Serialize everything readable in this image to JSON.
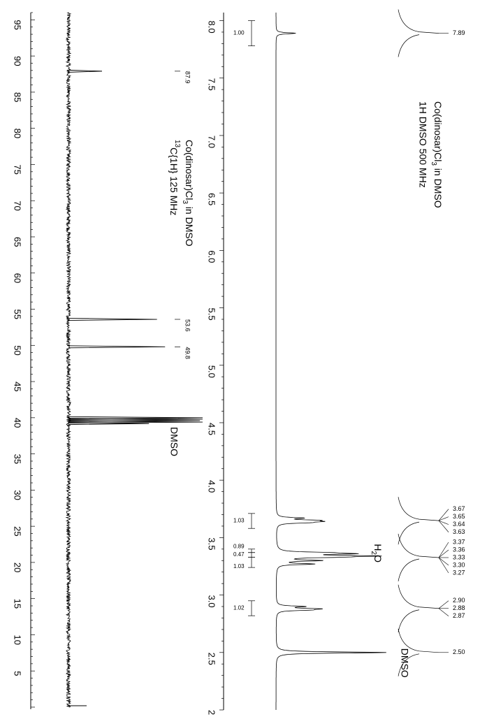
{
  "chart_data": [
    {
      "type": "line",
      "title": "Co(dinosar)Cl3 in DMSO",
      "subtitle": "13C{1H} 125 MHz",
      "title_parts": {
        "main": "Co(dinosar)Cl",
        "main_sub": "3",
        "main_rest": " in DMSO",
        "nucleus_sup": "13",
        "nucleus_rest": "C{1H}  125 MHz"
      },
      "xlabel": "",
      "ylabel": "",
      "x_axis": {
        "range": [
          96,
          0
        ],
        "unit": "ppm",
        "reversed": true
      },
      "ticks": [
        "5",
        "10",
        "15",
        "20",
        "25",
        "30",
        "35",
        "40",
        "45",
        "50",
        "55",
        "60",
        "65",
        "70",
        "75",
        "80",
        "85",
        "90",
        "95"
      ],
      "tick_values": [
        5,
        10,
        15,
        20,
        25,
        30,
        35,
        40,
        45,
        50,
        55,
        60,
        65,
        70,
        75,
        80,
        85,
        90,
        95
      ],
      "peaks": [
        {
          "ppm": 87.9,
          "label": "87.9",
          "height": 0.25
        },
        {
          "ppm": 53.6,
          "label": "53.6",
          "height": 0.66
        },
        {
          "ppm": 49.8,
          "label": "49.8",
          "height": 0.72
        },
        {
          "ppm": 40.0,
          "label": "",
          "height": 1.0
        },
        {
          "ppm": 39.8,
          "label": "",
          "height": 1.0
        },
        {
          "ppm": 39.6,
          "label": "",
          "height": 0.98
        },
        {
          "ppm": 39.4,
          "label": "",
          "height": 1.0
        },
        {
          "ppm": 39.2,
          "label": "",
          "height": 0.6
        }
      ],
      "solvent_label": "DMSO",
      "solvent_ppm": 39.5
    },
    {
      "type": "line",
      "title": "Co(dinosar)Cl3 in DMSO",
      "subtitle": "1H DMSO 500 MHz",
      "title_parts": {
        "main": "Co(dinosar)Cl",
        "main_sub": "3",
        "main_rest": " in DMSO",
        "sub": "1H DMSO 500 MHz"
      },
      "xlabel": "",
      "ylabel": "",
      "x_axis": {
        "range": [
          8.07,
          2.0
        ],
        "unit": "ppm",
        "reversed": true
      },
      "ticks": [
        "2",
        "2.5",
        "3.0",
        "3.5",
        "4.0",
        "4.5",
        "5.0",
        "5.5",
        "6.0",
        "6.5",
        "7.0",
        "7.5",
        "8.0"
      ],
      "tick_values": [
        2,
        2.5,
        3.0,
        3.5,
        4.0,
        4.5,
        5.0,
        5.5,
        6.0,
        6.5,
        7.0,
        7.5,
        8.0
      ],
      "peaks": [
        {
          "ppm": 7.89,
          "height": 0.18
        },
        {
          "ppm": 3.67,
          "height": 0.22
        },
        {
          "ppm": 3.65,
          "height": 0.3
        },
        {
          "ppm": 3.64,
          "height": 0.3
        },
        {
          "ppm": 3.63,
          "height": 0.22
        },
        {
          "ppm": 3.37,
          "height": 0.33
        },
        {
          "ppm": 3.36,
          "height": 0.58
        },
        {
          "ppm": 3.34,
          "height": 0.78
        },
        {
          "ppm": 3.33,
          "height": 0.4
        },
        {
          "ppm": 3.3,
          "height": 0.38
        },
        {
          "ppm": 3.27,
          "height": 0.33
        },
        {
          "ppm": 2.9,
          "height": 0.24
        },
        {
          "ppm": 2.88,
          "height": 0.34
        },
        {
          "ppm": 2.87,
          "height": 0.24
        },
        {
          "ppm": 2.5,
          "height": 1.0
        }
      ],
      "peak_labels": [
        {
          "ppm": 7.89,
          "label": "7.89",
          "group": 0
        },
        {
          "ppm": 3.67,
          "label": "3.67",
          "group": 1
        },
        {
          "ppm": 3.65,
          "label": "3.65",
          "group": 1
        },
        {
          "ppm": 3.64,
          "label": "3.64",
          "group": 1
        },
        {
          "ppm": 3.63,
          "label": "3.63",
          "group": 1
        },
        {
          "ppm": 3.37,
          "label": "3.37",
          "group": 2
        },
        {
          "ppm": 3.36,
          "label": "3.36",
          "group": 2
        },
        {
          "ppm": 3.33,
          "label": "3.33",
          "group": 2
        },
        {
          "ppm": 3.3,
          "label": "3.30",
          "group": 2
        },
        {
          "ppm": 3.27,
          "label": "3.27",
          "group": 2
        },
        {
          "ppm": 2.9,
          "label": "2.90",
          "group": 3
        },
        {
          "ppm": 2.88,
          "label": "2.88",
          "group": 3
        },
        {
          "ppm": 2.87,
          "label": "2.87",
          "group": 3
        },
        {
          "ppm": 2.5,
          "label": "2.50",
          "group": 4
        }
      ],
      "integrals": [
        {
          "from": 8.0,
          "to": 7.78,
          "value": "1.00"
        },
        {
          "from": 3.71,
          "to": 3.58,
          "value": "1.03"
        },
        {
          "from": 3.4,
          "to": 3.37,
          "value": "0.89"
        },
        {
          "from": 3.37,
          "to": 3.33,
          "value": "0.47"
        },
        {
          "from": 3.33,
          "to": 3.24,
          "value": "1.03"
        },
        {
          "from": 2.95,
          "to": 2.82,
          "value": "1.02"
        }
      ],
      "solvent_labels": [
        {
          "ppm": 3.36,
          "label": "H2O",
          "label_main": "H",
          "label_sub": "2",
          "label_rest": "O"
        },
        {
          "ppm": 2.5,
          "label": "DMSO"
        }
      ]
    }
  ]
}
